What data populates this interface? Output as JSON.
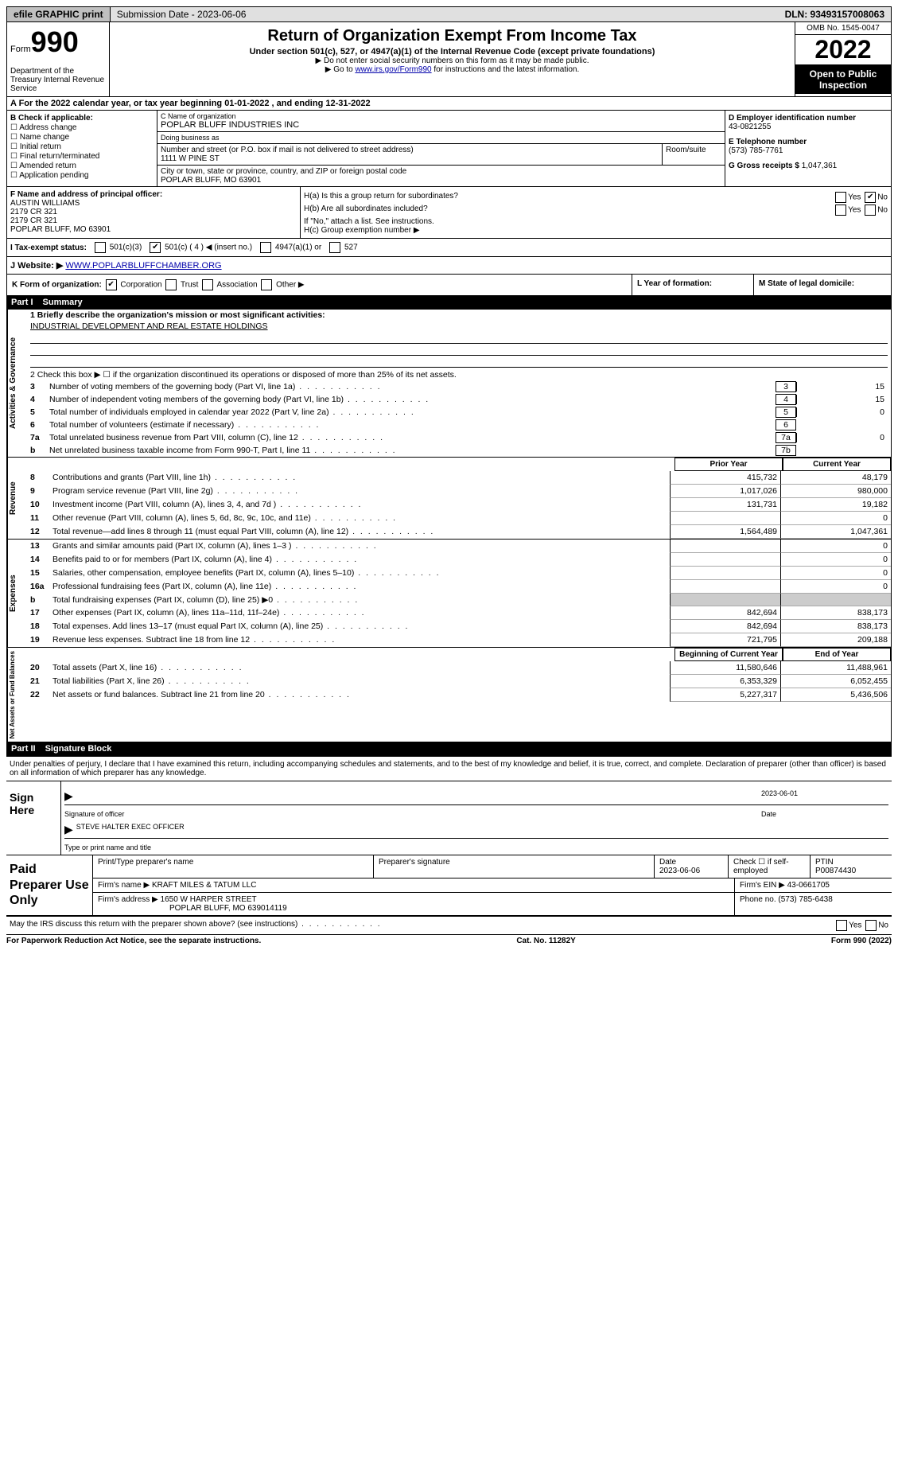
{
  "topbar": {
    "efile": "efile GRAPHIC print",
    "submission": "Submission Date - 2023-06-06",
    "dln": "DLN: 93493157008063"
  },
  "header": {
    "form_word": "Form",
    "form_num": "990",
    "title": "Return of Organization Exempt From Income Tax",
    "sub1": "Under section 501(c), 527, or 4947(a)(1) of the Internal Revenue Code (except private foundations)",
    "sub2a": "▶ Do not enter social security numbers on this form as it may be made public.",
    "sub2b_pre": "▶ Go to ",
    "sub2b_link": "www.irs.gov/Form990",
    "sub2b_post": " for instructions and the latest information.",
    "omb": "OMB No. 1545-0047",
    "year": "2022",
    "open": "Open to Public Inspection",
    "dept": "Department of the Treasury\nInternal Revenue Service"
  },
  "row_a": "A For the 2022 calendar year, or tax year beginning 01-01-2022   , and ending 12-31-2022",
  "col_b": {
    "label": "B Check if applicable:",
    "opts": [
      "Address change",
      "Name change",
      "Initial return",
      "Final return/terminated",
      "Amended return",
      "Application pending"
    ]
  },
  "col_c": {
    "name_label": "C Name of organization",
    "name": "POPLAR BLUFF INDUSTRIES INC",
    "dba_label": "Doing business as",
    "dba": "",
    "street_label": "Number and street (or P.O. box if mail is not delivered to street address)",
    "room_label": "Room/suite",
    "street": "1111 W PINE ST",
    "city_label": "City or town, state or province, country, and ZIP or foreign postal code",
    "city": "POPLAR BLUFF, MO  63901"
  },
  "col_d": {
    "label": "D Employer identification number",
    "val": "43-0821255"
  },
  "col_e": {
    "label": "E Telephone number",
    "val": "(573) 785-7761"
  },
  "col_g": {
    "label": "G Gross receipts $",
    "val": "1,047,361"
  },
  "col_f": {
    "label": "F  Name and address of principal officer:",
    "lines": [
      "AUSTIN WILLIAMS",
      "2179 CR 321",
      "2179 CR 321",
      "POPLAR BLUFF, MO  63901"
    ]
  },
  "col_h": {
    "a_label": "H(a)  Is this a group return for subordinates?",
    "a_no": true,
    "b_label": "H(b)  Are all subordinates included?",
    "b_note": "If \"No,\" attach a list. See instructions.",
    "c_label": "H(c)  Group exemption number ▶"
  },
  "row_i": {
    "label": "I   Tax-exempt status:",
    "c3": "501(c)(3)",
    "c": "501(c) ( 4 ) ◀ (insert no.)",
    "c_checked": true,
    "a1": "4947(a)(1) or",
    "s527": "527"
  },
  "row_j": {
    "label": "J   Website: ▶",
    "val": "WWW.POPLARBLUFFCHAMBER.ORG"
  },
  "row_k": {
    "label": "K Form of organization:",
    "corp": "Corporation",
    "corp_checked": true,
    "trust": "Trust",
    "assoc": "Association",
    "other": "Other ▶"
  },
  "row_l": {
    "label": "L Year of formation:"
  },
  "row_m": {
    "label": "M State of legal domicile:"
  },
  "part1": {
    "num": "Part I",
    "title": "Summary",
    "q1_label": "1   Briefly describe the organization's mission or most significant activities:",
    "q1_val": "INDUSTRIAL DEVELOPMENT AND REAL ESTATE HOLDINGS",
    "q2": "2   Check this box ▶ ☐ if the organization discontinued its operations or disposed of more than 25% of its net assets.",
    "gov_lines": [
      {
        "n": "3",
        "d": "Number of voting members of the governing body (Part VI, line 1a)",
        "b": "3",
        "v": "15"
      },
      {
        "n": "4",
        "d": "Number of independent voting members of the governing body (Part VI, line 1b)",
        "b": "4",
        "v": "15"
      },
      {
        "n": "5",
        "d": "Total number of individuals employed in calendar year 2022 (Part V, line 2a)",
        "b": "5",
        "v": "0"
      },
      {
        "n": "6",
        "d": "Total number of volunteers (estimate if necessary)",
        "b": "6",
        "v": ""
      },
      {
        "n": "7a",
        "d": "Total unrelated business revenue from Part VIII, column (C), line 12",
        "b": "7a",
        "v": "0"
      },
      {
        "n": "b",
        "d": "Net unrelated business taxable income from Form 990-T, Part I, line 11",
        "b": "7b",
        "v": ""
      }
    ],
    "col_headers": {
      "prior": "Prior Year",
      "current": "Current Year"
    },
    "rev_lines": [
      {
        "n": "8",
        "d": "Contributions and grants (Part VIII, line 1h)",
        "p": "415,732",
        "c": "48,179"
      },
      {
        "n": "9",
        "d": "Program service revenue (Part VIII, line 2g)",
        "p": "1,017,026",
        "c": "980,000"
      },
      {
        "n": "10",
        "d": "Investment income (Part VIII, column (A), lines 3, 4, and 7d )",
        "p": "131,731",
        "c": "19,182"
      },
      {
        "n": "11",
        "d": "Other revenue (Part VIII, column (A), lines 5, 6d, 8c, 9c, 10c, and 11e)",
        "p": "",
        "c": "0"
      },
      {
        "n": "12",
        "d": "Total revenue—add lines 8 through 11 (must equal Part VIII, column (A), line 12)",
        "p": "1,564,489",
        "c": "1,047,361"
      }
    ],
    "exp_lines": [
      {
        "n": "13",
        "d": "Grants and similar amounts paid (Part IX, column (A), lines 1–3 )",
        "p": "",
        "c": "0"
      },
      {
        "n": "14",
        "d": "Benefits paid to or for members (Part IX, column (A), line 4)",
        "p": "",
        "c": "0"
      },
      {
        "n": "15",
        "d": "Salaries, other compensation, employee benefits (Part IX, column (A), lines 5–10)",
        "p": "",
        "c": "0"
      },
      {
        "n": "16a",
        "d": "Professional fundraising fees (Part IX, column (A), line 11e)",
        "p": "",
        "c": "0"
      },
      {
        "n": "b",
        "d": "Total fundraising expenses (Part IX, column (D), line 25) ▶0",
        "p": "shaded",
        "c": "shaded"
      },
      {
        "n": "17",
        "d": "Other expenses (Part IX, column (A), lines 11a–11d, 11f–24e)",
        "p": "842,694",
        "c": "838,173"
      },
      {
        "n": "18",
        "d": "Total expenses. Add lines 13–17 (must equal Part IX, column (A), line 25)",
        "p": "842,694",
        "c": "838,173"
      },
      {
        "n": "19",
        "d": "Revenue less expenses. Subtract line 18 from line 12",
        "p": "721,795",
        "c": "209,188"
      }
    ],
    "net_headers": {
      "begin": "Beginning of Current Year",
      "end": "End of Year"
    },
    "net_lines": [
      {
        "n": "20",
        "d": "Total assets (Part X, line 16)",
        "p": "11,580,646",
        "c": "11,488,961"
      },
      {
        "n": "21",
        "d": "Total liabilities (Part X, line 26)",
        "p": "6,353,329",
        "c": "6,052,455"
      },
      {
        "n": "22",
        "d": "Net assets or fund balances. Subtract line 21 from line 20",
        "p": "5,227,317",
        "c": "5,436,506"
      }
    ],
    "side_gov": "Activities & Governance",
    "side_rev": "Revenue",
    "side_exp": "Expenses",
    "side_net": "Net Assets or Fund Balances"
  },
  "part2": {
    "num": "Part II",
    "title": "Signature Block",
    "penalties": "Under penalties of perjury, I declare that I have examined this return, including accompanying schedules and statements, and to the best of my knowledge and belief, it is true, correct, and complete. Declaration of preparer (other than officer) is based on all information of which preparer has any knowledge.",
    "sign_here": "Sign Here",
    "sig_officer": "Signature of officer",
    "date": "Date",
    "date_val": "2023-06-01",
    "name_title": "STEVE HALTER  EXEC OFFICER",
    "name_title_label": "Type or print name and title"
  },
  "preparer": {
    "label": "Paid Preparer Use Only",
    "row1": {
      "name_label": "Print/Type preparer's name",
      "name": "",
      "sig_label": "Preparer's signature",
      "sig": "",
      "date_label": "Date",
      "date": "2023-06-06",
      "check_label": "Check ☐ if self-employed",
      "ptin_label": "PTIN",
      "ptin": "P00874430"
    },
    "row2": {
      "firm_label": "Firm's name    ▶",
      "firm": "KRAFT MILES & TATUM LLC",
      "ein_label": "Firm's EIN ▶",
      "ein": "43-0661705"
    },
    "row3": {
      "addr_label": "Firm's address ▶",
      "addr1": "1650 W HARPER STREET",
      "addr2": "POPLAR BLUFF, MO  639014119",
      "phone_label": "Phone no.",
      "phone": "(573) 785-6438"
    }
  },
  "footer": {
    "may": "May the IRS discuss this return with the preparer shown above? (see instructions)",
    "paperwork": "For Paperwork Reduction Act Notice, see the separate instructions.",
    "cat": "Cat. No. 11282Y",
    "form": "Form 990 (2022)"
  }
}
